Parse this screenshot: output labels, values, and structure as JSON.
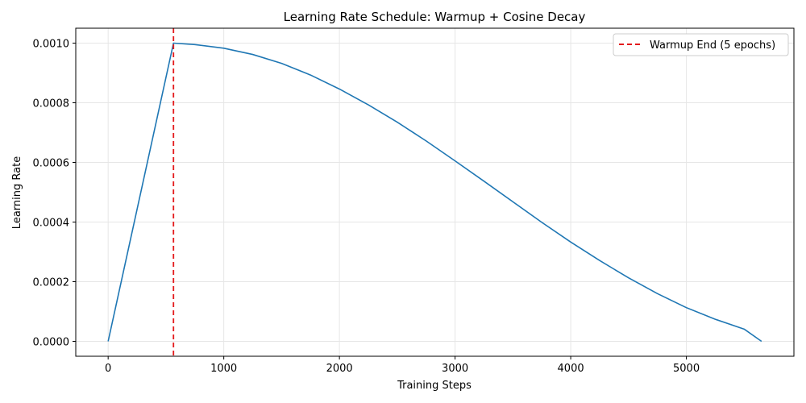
{
  "chart_data": {
    "type": "line",
    "title": "Learning Rate Schedule: Warmup + Cosine Decay",
    "xlabel": "Training Steps",
    "ylabel": "Learning Rate",
    "xlim": [
      -280,
      5930
    ],
    "ylim": [
      -5e-05,
      0.00105
    ],
    "xticks": [
      0,
      1000,
      2000,
      3000,
      4000,
      5000
    ],
    "xtick_labels": [
      "0",
      "1000",
      "2000",
      "3000",
      "4000",
      "5000"
    ],
    "yticks": [
      0,
      0.0002,
      0.0004,
      0.0006,
      0.0008,
      0.001
    ],
    "ytick_labels": [
      "0.0000",
      "0.0002",
      "0.0004",
      "0.0006",
      "0.0008",
      "0.0010"
    ],
    "grid": true,
    "legend_position": "top-right",
    "series": [
      {
        "color": "#1f77b4",
        "style": "solid",
        "x": [
          0,
          565,
          750,
          1000,
          1250,
          1500,
          1750,
          2000,
          2250,
          2500,
          2750,
          3000,
          3250,
          3500,
          3750,
          4000,
          4250,
          4500,
          4750,
          5000,
          5250,
          5500,
          5650
        ],
        "y": [
          0,
          0.001,
          0.000995,
          0.000983,
          0.000962,
          0.000932,
          0.000893,
          0.000846,
          0.000793,
          0.000735,
          0.000672,
          0.000605,
          0.000537,
          0.000468,
          0.000399,
          0.000333,
          0.000271,
          0.000213,
          0.00016,
          0.000113,
          7.4e-05,
          4.1e-05,
          0.0
        ]
      }
    ],
    "vlines": [
      {
        "x": 565,
        "name": "Warmup End (5 epochs)",
        "color": "#e31a1c",
        "style": "dashed"
      }
    ]
  }
}
